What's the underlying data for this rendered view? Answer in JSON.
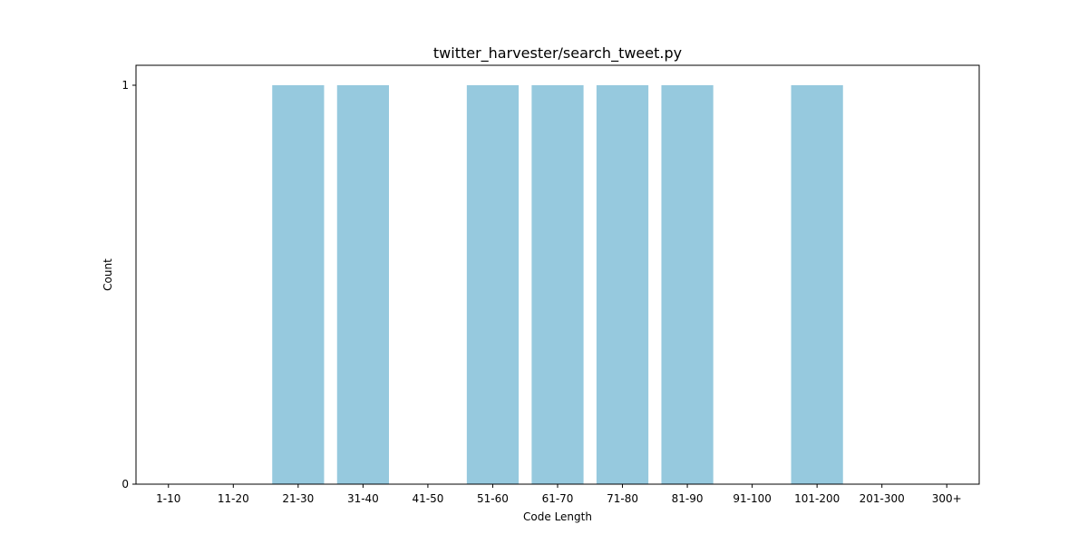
{
  "chart_data": {
    "type": "bar",
    "title": "twitter_harvester/search_tweet.py",
    "xlabel": "Code Length",
    "ylabel": "Count",
    "categories": [
      "1-10",
      "11-20",
      "21-30",
      "31-40",
      "41-50",
      "51-60",
      "61-70",
      "71-80",
      "81-90",
      "91-100",
      "101-200",
      "201-300",
      "300+"
    ],
    "values": [
      0,
      0,
      1,
      1,
      0,
      1,
      1,
      1,
      1,
      0,
      1,
      0,
      0
    ],
    "ylim": [
      0,
      1.05
    ],
    "yticks": [
      0,
      1
    ],
    "grid": false,
    "legend": "none",
    "bar_color": "#96c9de"
  }
}
